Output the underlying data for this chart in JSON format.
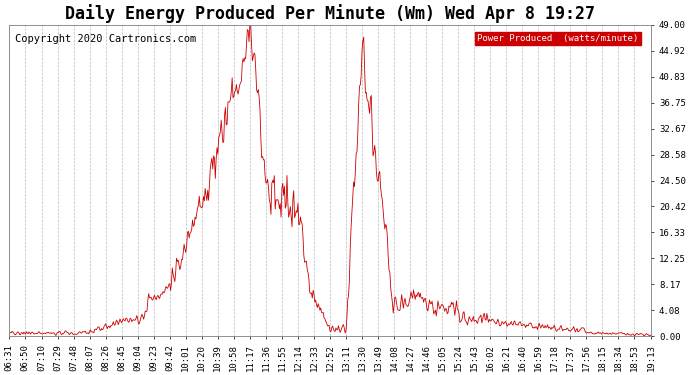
{
  "title": "Daily Energy Produced Per Minute (Wm) Wed Apr 8 19:27",
  "copyright": "Copyright 2020 Cartronics.com",
  "legend_label": "Power Produced  (watts/minute)",
  "legend_bg": "#cc0000",
  "legend_fg": "#ffffff",
  "line_color": "#cc0000",
  "background_color": "#ffffff",
  "grid_color": "#bbbbbb",
  "ylim": [
    0,
    49.0
  ],
  "yticks": [
    0.0,
    4.08,
    8.17,
    12.25,
    16.33,
    20.42,
    24.5,
    28.58,
    32.67,
    36.75,
    40.83,
    44.92,
    49.0
  ],
  "x_labels": [
    "06:31",
    "06:50",
    "07:10",
    "07:29",
    "07:48",
    "08:07",
    "08:26",
    "08:45",
    "09:04",
    "09:23",
    "09:42",
    "10:01",
    "10:20",
    "10:39",
    "10:58",
    "11:17",
    "11:36",
    "11:55",
    "12:14",
    "12:33",
    "12:52",
    "13:11",
    "13:30",
    "13:49",
    "14:08",
    "14:27",
    "14:46",
    "15:05",
    "15:24",
    "15:43",
    "16:02",
    "16:21",
    "16:40",
    "16:59",
    "17:18",
    "17:37",
    "17:56",
    "18:15",
    "18:34",
    "18:53",
    "19:13"
  ],
  "title_fontsize": 12,
  "tick_fontsize": 6.5,
  "copyright_fontsize": 7.5
}
